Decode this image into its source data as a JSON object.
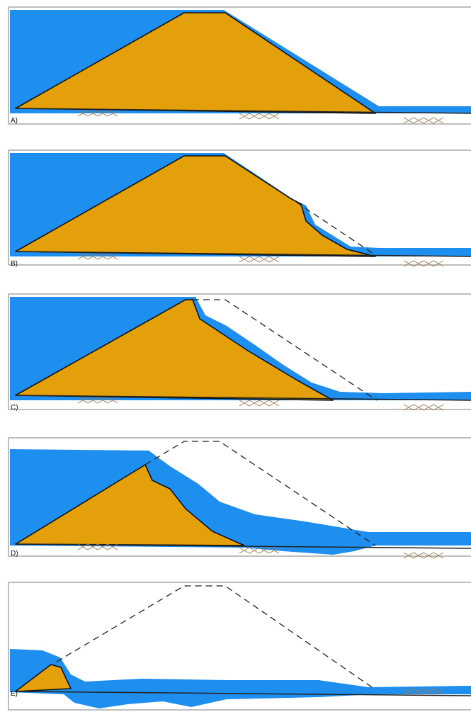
{
  "panels": [
    {
      "label": "A)"
    },
    {
      "label": "B)"
    },
    {
      "label": "C)"
    },
    {
      "label": "D)"
    },
    {
      "label": "E)"
    }
  ]
}
